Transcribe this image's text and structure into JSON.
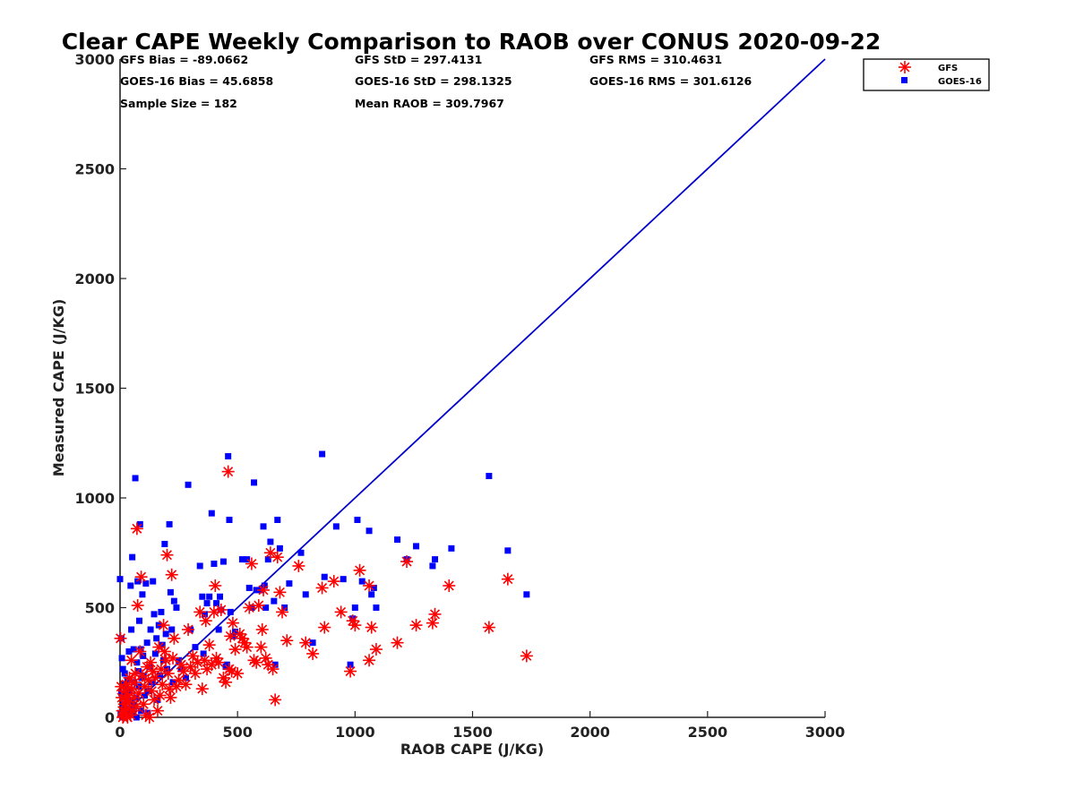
{
  "chart_data": {
    "type": "scatter",
    "title": "Clear CAPE Weekly Comparison to RAOB over CONUS 2020-09-22",
    "xlabel": "RAOB CAPE (J/KG)",
    "ylabel": "Measured CAPE (J/KG)",
    "xlim": [
      0,
      3000
    ],
    "ylim": [
      0,
      3000
    ],
    "xticks": [
      "0",
      "500",
      "1000",
      "1500",
      "2000",
      "2500",
      "3000"
    ],
    "yticks": [
      "0",
      "500",
      "1000",
      "1500",
      "2000",
      "2500",
      "3000"
    ],
    "grid": false,
    "legend_position": "top-right",
    "stats": {
      "gfs_bias": "GFS Bias = -89.0662",
      "gfs_std": "GFS StD = 297.4131",
      "gfs_rms": "GFS RMS = 310.4631",
      "goes_bias": "GOES-16 Bias = 45.6858",
      "goes_std": "GOES-16 StD = 298.1325",
      "goes_rms": "GOES-16 RMS = 301.6126",
      "sample_size": "Sample Size = 182",
      "mean_raob": "Mean RAOB = 309.7967"
    },
    "reference_line": {
      "from": [
        0,
        0
      ],
      "to": [
        3000,
        3000
      ],
      "color": "#0000cc"
    },
    "series": [
      {
        "name": "GFS",
        "marker": "asterisk",
        "color": "#ff0000",
        "points": [
          [
            2,
            360
          ],
          [
            5,
            140
          ],
          [
            8,
            90
          ],
          [
            10,
            30
          ],
          [
            12,
            0
          ],
          [
            15,
            5
          ],
          [
            18,
            60
          ],
          [
            20,
            120
          ],
          [
            22,
            20
          ],
          [
            25,
            80
          ],
          [
            28,
            150
          ],
          [
            30,
            40
          ],
          [
            32,
            0
          ],
          [
            35,
            100
          ],
          [
            38,
            70
          ],
          [
            40,
            180
          ],
          [
            45,
            10
          ],
          [
            48,
            260
          ],
          [
            50,
            130
          ],
          [
            55,
            30
          ],
          [
            60,
            90
          ],
          [
            62,
            160
          ],
          [
            65,
            200
          ],
          [
            70,
            50
          ],
          [
            72,
            860
          ],
          [
            75,
            510
          ],
          [
            80,
            110
          ],
          [
            85,
            300
          ],
          [
            90,
            640
          ],
          [
            95,
            190
          ],
          [
            100,
            60
          ],
          [
            105,
            140
          ],
          [
            110,
            10
          ],
          [
            115,
            230
          ],
          [
            120,
            170
          ],
          [
            125,
            0
          ],
          [
            130,
            250
          ],
          [
            135,
            120
          ],
          [
            140,
            210
          ],
          [
            145,
            80
          ],
          [
            150,
            180
          ],
          [
            160,
            30
          ],
          [
            165,
            320
          ],
          [
            170,
            100
          ],
          [
            175,
            220
          ],
          [
            180,
            150
          ],
          [
            185,
            420
          ],
          [
            190,
            300
          ],
          [
            195,
            260
          ],
          [
            200,
            740
          ],
          [
            205,
            200
          ],
          [
            210,
            130
          ],
          [
            215,
            90
          ],
          [
            220,
            650
          ],
          [
            225,
            270
          ],
          [
            230,
            360
          ],
          [
            240,
            140
          ],
          [
            250,
            170
          ],
          [
            260,
            240
          ],
          [
            270,
            210
          ],
          [
            280,
            150
          ],
          [
            290,
            400
          ],
          [
            300,
            230
          ],
          [
            310,
            280
          ],
          [
            320,
            200
          ],
          [
            330,
            250
          ],
          [
            340,
            480
          ],
          [
            350,
            130
          ],
          [
            360,
            260
          ],
          [
            365,
            440
          ],
          [
            370,
            220
          ],
          [
            380,
            330
          ],
          [
            390,
            240
          ],
          [
            400,
            480
          ],
          [
            405,
            600
          ],
          [
            410,
            270
          ],
          [
            420,
            250
          ],
          [
            430,
            490
          ],
          [
            440,
            180
          ],
          [
            450,
            160
          ],
          [
            460,
            1120
          ],
          [
            465,
            220
          ],
          [
            470,
            370
          ],
          [
            475,
            210
          ],
          [
            480,
            430
          ],
          [
            490,
            310
          ],
          [
            500,
            200
          ],
          [
            510,
            380
          ],
          [
            520,
            360
          ],
          [
            530,
            340
          ],
          [
            540,
            320
          ],
          [
            550,
            500
          ],
          [
            560,
            700
          ],
          [
            570,
            260
          ],
          [
            580,
            250
          ],
          [
            590,
            510
          ],
          [
            600,
            320
          ],
          [
            605,
            400
          ],
          [
            610,
            580
          ],
          [
            620,
            270
          ],
          [
            630,
            240
          ],
          [
            640,
            750
          ],
          [
            650,
            220
          ],
          [
            660,
            80
          ],
          [
            670,
            730
          ],
          [
            680,
            570
          ],
          [
            690,
            480
          ],
          [
            710,
            350
          ],
          [
            760,
            690
          ],
          [
            790,
            340
          ],
          [
            820,
            290
          ],
          [
            860,
            590
          ],
          [
            870,
            410
          ],
          [
            910,
            620
          ],
          [
            940,
            480
          ],
          [
            980,
            210
          ],
          [
            990,
            440
          ],
          [
            1000,
            420
          ],
          [
            1020,
            670
          ],
          [
            1060,
            600
          ],
          [
            1060,
            260
          ],
          [
            1070,
            410
          ],
          [
            1090,
            310
          ],
          [
            1180,
            340
          ],
          [
            1220,
            710
          ],
          [
            1260,
            420
          ],
          [
            1330,
            430
          ],
          [
            1340,
            470
          ],
          [
            1400,
            600
          ],
          [
            1570,
            410
          ],
          [
            1650,
            630
          ],
          [
            1730,
            280
          ]
        ]
      },
      {
        "name": "GOES-16",
        "marker": "square",
        "color": "#0000ff",
        "points": [
          [
            0,
            630
          ],
          [
            3,
            20
          ],
          [
            5,
            360
          ],
          [
            6,
            110
          ],
          [
            8,
            270
          ],
          [
            10,
            5
          ],
          [
            12,
            220
          ],
          [
            14,
            60
          ],
          [
            16,
            150
          ],
          [
            18,
            0
          ],
          [
            20,
            200
          ],
          [
            22,
            90
          ],
          [
            25,
            40
          ],
          [
            28,
            130
          ],
          [
            30,
            10
          ],
          [
            32,
            170
          ],
          [
            35,
            80
          ],
          [
            38,
            300
          ],
          [
            40,
            30
          ],
          [
            42,
            120
          ],
          [
            45,
            600
          ],
          [
            48,
            400
          ],
          [
            50,
            70
          ],
          [
            52,
            730
          ],
          [
            55,
            20
          ],
          [
            58,
            310
          ],
          [
            60,
            160
          ],
          [
            62,
            50
          ],
          [
            65,
            1090
          ],
          [
            68,
            90
          ],
          [
            70,
            0
          ],
          [
            72,
            250
          ],
          [
            75,
            620
          ],
          [
            78,
            210
          ],
          [
            80,
            140
          ],
          [
            82,
            440
          ],
          [
            85,
            880
          ],
          [
            88,
            310
          ],
          [
            90,
            30
          ],
          [
            92,
            180
          ],
          [
            95,
            560
          ],
          [
            98,
            280
          ],
          [
            100,
            190
          ],
          [
            105,
            100
          ],
          [
            110,
            610
          ],
          [
            115,
            340
          ],
          [
            118,
            20
          ],
          [
            120,
            120
          ],
          [
            125,
            230
          ],
          [
            130,
            400
          ],
          [
            135,
            160
          ],
          [
            140,
            620
          ],
          [
            145,
            470
          ],
          [
            150,
            290
          ],
          [
            155,
            360
          ],
          [
            160,
            80
          ],
          [
            165,
            420
          ],
          [
            170,
            190
          ],
          [
            175,
            480
          ],
          [
            180,
            330
          ],
          [
            185,
            260
          ],
          [
            190,
            790
          ],
          [
            195,
            380
          ],
          [
            200,
            220
          ],
          [
            210,
            880
          ],
          [
            215,
            570
          ],
          [
            220,
            400
          ],
          [
            225,
            160
          ],
          [
            230,
            530
          ],
          [
            240,
            500
          ],
          [
            250,
            260
          ],
          [
            260,
            220
          ],
          [
            280,
            180
          ],
          [
            290,
            1060
          ],
          [
            300,
            400
          ],
          [
            320,
            320
          ],
          [
            340,
            690
          ],
          [
            350,
            550
          ],
          [
            355,
            290
          ],
          [
            360,
            470
          ],
          [
            370,
            520
          ],
          [
            380,
            550
          ],
          [
            390,
            930
          ],
          [
            400,
            700
          ],
          [
            410,
            520
          ],
          [
            420,
            400
          ],
          [
            425,
            550
          ],
          [
            430,
            490
          ],
          [
            440,
            710
          ],
          [
            450,
            230
          ],
          [
            455,
            240
          ],
          [
            460,
            1190
          ],
          [
            465,
            900
          ],
          [
            470,
            480
          ],
          [
            480,
            370
          ],
          [
            490,
            390
          ],
          [
            520,
            720
          ],
          [
            540,
            720
          ],
          [
            550,
            590
          ],
          [
            560,
            500
          ],
          [
            570,
            1070
          ],
          [
            580,
            580
          ],
          [
            600,
            580
          ],
          [
            610,
            870
          ],
          [
            615,
            600
          ],
          [
            620,
            500
          ],
          [
            630,
            720
          ],
          [
            640,
            800
          ],
          [
            655,
            530
          ],
          [
            660,
            240
          ],
          [
            670,
            900
          ],
          [
            680,
            770
          ],
          [
            700,
            500
          ],
          [
            720,
            610
          ],
          [
            770,
            750
          ],
          [
            790,
            560
          ],
          [
            820,
            340
          ],
          [
            860,
            1200
          ],
          [
            870,
            640
          ],
          [
            920,
            870
          ],
          [
            950,
            630
          ],
          [
            980,
            240
          ],
          [
            990,
            450
          ],
          [
            1000,
            500
          ],
          [
            1010,
            900
          ],
          [
            1030,
            620
          ],
          [
            1060,
            850
          ],
          [
            1070,
            560
          ],
          [
            1080,
            590
          ],
          [
            1090,
            500
          ],
          [
            1180,
            810
          ],
          [
            1220,
            720
          ],
          [
            1260,
            780
          ],
          [
            1330,
            690
          ],
          [
            1340,
            720
          ],
          [
            1410,
            770
          ],
          [
            1570,
            1100
          ],
          [
            1650,
            760
          ],
          [
            1730,
            560
          ]
        ]
      }
    ]
  }
}
